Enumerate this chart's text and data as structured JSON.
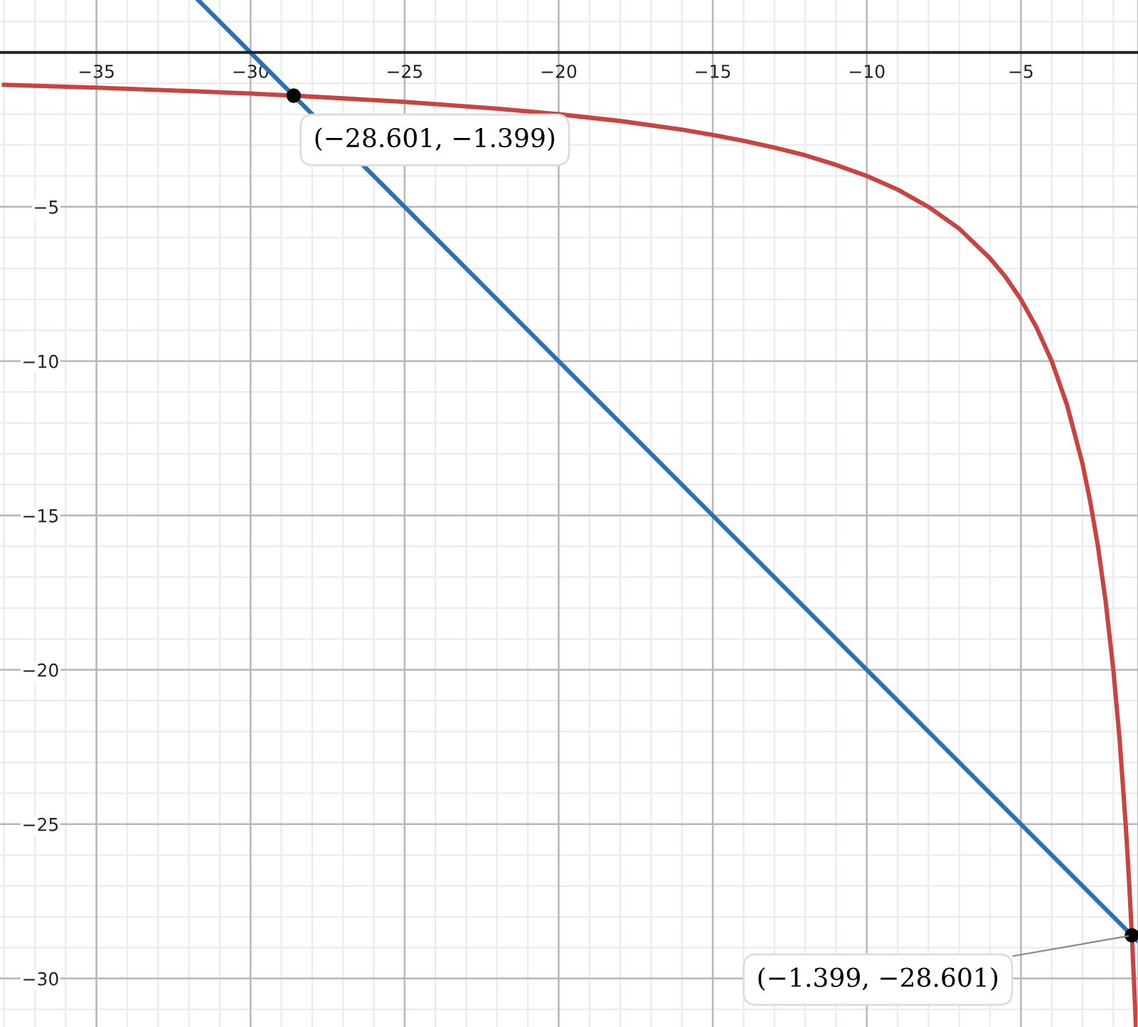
{
  "chart_data": {
    "type": "line",
    "xlim": [
      -38.13,
      -1.2
    ],
    "ylim": [
      -31.57,
      1.7
    ],
    "xticks": [
      -35,
      -30,
      -25,
      -20,
      -15,
      -10,
      -5
    ],
    "yticks": [
      -30,
      -25,
      -20,
      -15,
      -10,
      -5
    ],
    "grid": true,
    "series": [
      {
        "color": "#c74440",
        "x": [
          -38,
          -35,
          -32,
          -30,
          -28,
          -25,
          -22,
          -20,
          -18,
          -16,
          -15,
          -14,
          -13,
          -12,
          -11,
          -10,
          -9,
          -8,
          -7,
          -6,
          -5.5,
          -5,
          -4.5,
          -4,
          -3.5,
          -3,
          -2.75,
          -2.5,
          -2.25,
          -2,
          -1.8,
          -1.6,
          -1.5,
          -1.4,
          -1.3,
          -1.27
        ],
        "values": [
          -1.05,
          -1.14,
          -1.25,
          -1.33,
          -1.43,
          -1.6,
          -1.82,
          -2,
          -2.22,
          -2.5,
          -2.67,
          -2.86,
          -3.08,
          -3.33,
          -3.64,
          -4,
          -4.44,
          -5,
          -5.71,
          -6.67,
          -7.27,
          -8,
          -8.89,
          -10,
          -11.43,
          -13.33,
          -14.55,
          -16,
          -17.78,
          -20,
          -22.22,
          -25,
          -26.67,
          -28.57,
          -30.77,
          -31.5
        ]
      },
      {
        "color": "#2d70b3",
        "x": [
          -31.7,
          -1.2
        ],
        "values": [
          1.7,
          -28.8
        ]
      },
      {
        "type": "scatter",
        "color": "#000000",
        "x": [
          -28.601,
          -1.399
        ],
        "values": [
          -1.399,
          -28.601
        ]
      }
    ],
    "annotations": [
      {
        "text": "(−28.601, −1.399)",
        "x": -28.601,
        "y": -1.399
      },
      {
        "text": "(−1.399, −28.601)",
        "x": -1.399,
        "y": -28.601
      }
    ]
  }
}
